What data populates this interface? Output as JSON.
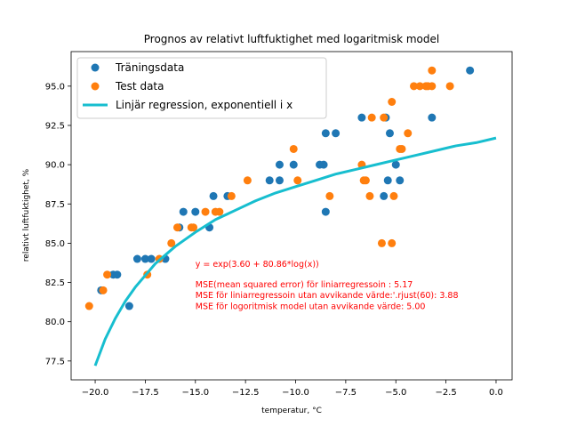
{
  "chart_data": {
    "type": "scatter",
    "title": "Prognos av relativt luftfuktighet med logaritmisk model",
    "xlabel": "temperatur, °C",
    "ylabel": "relativt luftfuktighet, %",
    "xlim": [
      -21.2,
      0.8
    ],
    "ylim": [
      76.3,
      97.2
    ],
    "xticks": [
      -20.0,
      -17.5,
      -15.0,
      -12.5,
      -10.0,
      -7.5,
      -5.0,
      -2.5,
      0.0
    ],
    "xtick_labels": [
      "−20.0",
      "−17.5",
      "−15.0",
      "−12.5",
      "−10.0",
      "−7.5",
      "−5.0",
      "−2.5",
      "0.0"
    ],
    "yticks": [
      77.5,
      80.0,
      82.5,
      85.0,
      87.5,
      90.0,
      92.5,
      95.0
    ],
    "ytick_labels": [
      "77.5",
      "80.0",
      "82.5",
      "85.0",
      "87.5",
      "90.0",
      "92.5",
      "95.0"
    ],
    "grid": false,
    "legend_position": "top-left",
    "series": [
      {
        "name": "Träningsdata",
        "kind": "scatter",
        "color": "#1f77b4",
        "points": [
          [
            -19.7,
            82
          ],
          [
            -19.1,
            83
          ],
          [
            -18.9,
            83
          ],
          [
            -18.3,
            81
          ],
          [
            -17.9,
            84
          ],
          [
            -17.5,
            84
          ],
          [
            -17.2,
            84
          ],
          [
            -16.5,
            84
          ],
          [
            -15.8,
            86
          ],
          [
            -15.6,
            87
          ],
          [
            -15.0,
            87
          ],
          [
            -14.3,
            86
          ],
          [
            -14.1,
            88
          ],
          [
            -13.4,
            88
          ],
          [
            -11.3,
            89
          ],
          [
            -10.8,
            90
          ],
          [
            -10.8,
            89
          ],
          [
            -10.1,
            90
          ],
          [
            -8.8,
            90
          ],
          [
            -8.6,
            90
          ],
          [
            -8.5,
            87
          ],
          [
            -8.5,
            92
          ],
          [
            -8.0,
            92
          ],
          [
            -6.7,
            93
          ],
          [
            -5.6,
            88
          ],
          [
            -5.5,
            93
          ],
          [
            -5.4,
            89
          ],
          [
            -5.3,
            92
          ],
          [
            -5.0,
            90
          ],
          [
            -4.8,
            89
          ],
          [
            -3.2,
            93
          ],
          [
            -1.3,
            96
          ]
        ]
      },
      {
        "name": "Test data",
        "kind": "scatter",
        "color": "#ff7f0e",
        "points": [
          [
            -20.3,
            81
          ],
          [
            -19.6,
            82
          ],
          [
            -19.4,
            83
          ],
          [
            -17.4,
            83
          ],
          [
            -16.8,
            84
          ],
          [
            -16.2,
            85
          ],
          [
            -15.9,
            86
          ],
          [
            -15.2,
            86
          ],
          [
            -15.1,
            86
          ],
          [
            -14.5,
            87
          ],
          [
            -14.0,
            87
          ],
          [
            -13.8,
            87
          ],
          [
            -13.2,
            88
          ],
          [
            -12.4,
            89
          ],
          [
            -10.1,
            91
          ],
          [
            -9.9,
            89
          ],
          [
            -8.3,
            88
          ],
          [
            -6.7,
            90
          ],
          [
            -6.6,
            89
          ],
          [
            -6.5,
            89
          ],
          [
            -6.3,
            88
          ],
          [
            -6.2,
            93
          ],
          [
            -5.7,
            85
          ],
          [
            -5.6,
            93
          ],
          [
            -5.2,
            85
          ],
          [
            -5.2,
            94
          ],
          [
            -5.1,
            88
          ],
          [
            -4.8,
            91
          ],
          [
            -4.7,
            91
          ],
          [
            -4.4,
            92
          ],
          [
            -4.1,
            95
          ],
          [
            -3.8,
            95
          ],
          [
            -3.5,
            95
          ],
          [
            -3.4,
            95
          ],
          [
            -3.2,
            96
          ],
          [
            -3.2,
            95
          ],
          [
            -2.3,
            95
          ]
        ]
      },
      {
        "name": "Linjär regression, exponentiell i x",
        "kind": "line",
        "color": "#17becf",
        "points": [
          [
            -20.0,
            77.2
          ],
          [
            -19.5,
            78.9
          ],
          [
            -19.0,
            80.2
          ],
          [
            -18.5,
            81.3
          ],
          [
            -18.0,
            82.2
          ],
          [
            -17.0,
            83.7
          ],
          [
            -16.0,
            84.8
          ],
          [
            -15.0,
            85.7
          ],
          [
            -14.0,
            86.5
          ],
          [
            -13.0,
            87.1
          ],
          [
            -12.0,
            87.7
          ],
          [
            -11.0,
            88.2
          ],
          [
            -10.0,
            88.6
          ],
          [
            -9.0,
            89.0
          ],
          [
            -8.0,
            89.4
          ],
          [
            -7.0,
            89.7
          ],
          [
            -6.0,
            90.0
          ],
          [
            -5.0,
            90.3
          ],
          [
            -4.0,
            90.6
          ],
          [
            -3.0,
            90.9
          ],
          [
            -2.0,
            91.2
          ],
          [
            -1.0,
            91.4
          ],
          [
            0.0,
            91.7
          ]
        ]
      }
    ],
    "annotations": [
      {
        "text": "y = exp(3.60 + 80.86*log(x))",
        "x": -15.0,
        "y": 83.5,
        "color": "#ff0000"
      },
      {
        "text": "MSE(mean squared error) för liniarregressoin : 5.17",
        "x": -15.0,
        "y": 82.2,
        "color": "#ff0000"
      },
      {
        "text": "MSE för liniarregressoin utan avvikande värde:'.rjust(60): 3.88",
        "x": -15.0,
        "y": 81.5,
        "color": "#ff0000"
      },
      {
        "text": "MSE för logoritmisk model utan avvikande värde: 5.00",
        "x": -15.0,
        "y": 80.8,
        "color": "#ff0000"
      }
    ]
  }
}
